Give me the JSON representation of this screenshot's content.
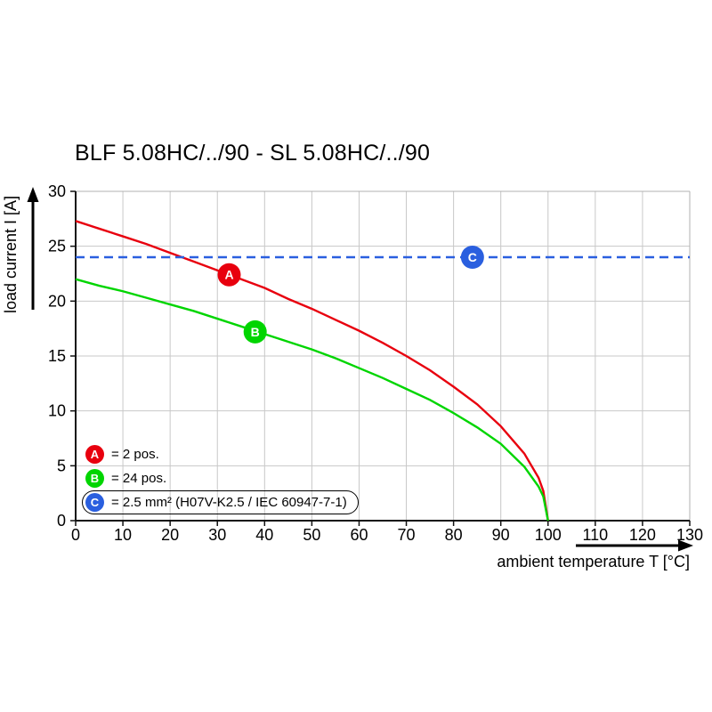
{
  "title": "BLF 5.08HC/../90 - SL 5.08HC/../90",
  "chart_data": {
    "type": "line",
    "title": "BLF 5.08HC/../90 - SL 5.08HC/../90",
    "xlabel": "ambient temperature T [°C]",
    "ylabel": "load current I [A]",
    "xlim": [
      0,
      130
    ],
    "ylim": [
      0,
      30
    ],
    "x_tick_step": 10,
    "y_tick_step": 5,
    "grid": true,
    "legend_position": "bottom-left",
    "series": [
      {
        "name": "A",
        "label": "= 2 pos.",
        "color": "#e8000e",
        "style": "solid",
        "x": [
          0,
          5,
          10,
          15,
          20,
          25,
          30,
          35,
          40,
          45,
          50,
          55,
          60,
          65,
          70,
          75,
          80,
          85,
          90,
          95,
          98,
          99,
          100
        ],
        "y": [
          27.3,
          26.6,
          25.9,
          25.2,
          24.4,
          23.6,
          22.8,
          22.0,
          21.2,
          20.2,
          19.3,
          18.3,
          17.3,
          16.2,
          15.0,
          13.7,
          12.2,
          10.6,
          8.6,
          6.1,
          3.9,
          2.7,
          0
        ]
      },
      {
        "name": "B",
        "label": "= 24 pos.",
        "color": "#00d500",
        "style": "solid",
        "x": [
          0,
          5,
          10,
          15,
          20,
          25,
          30,
          35,
          40,
          45,
          50,
          55,
          60,
          65,
          70,
          75,
          80,
          85,
          90,
          95,
          98,
          99,
          100
        ],
        "y": [
          22.0,
          21.4,
          20.9,
          20.3,
          19.7,
          19.1,
          18.4,
          17.7,
          17.0,
          16.3,
          15.6,
          14.8,
          13.9,
          13.0,
          12.0,
          11.0,
          9.8,
          8.5,
          7.0,
          4.9,
          3.1,
          2.2,
          0
        ]
      },
      {
        "name": "C",
        "label": "= 2.5 mm² (H07V-K2.5 / IEC 60947-7-1)",
        "color": "#2a5fdf",
        "style": "dashed",
        "x": [
          0,
          130
        ],
        "y": [
          24,
          24
        ]
      }
    ],
    "markers": [
      {
        "label": "A",
        "x": 32.5,
        "y": 22.4,
        "color": "#e8000e"
      },
      {
        "label": "B",
        "x": 38,
        "y": 17.2,
        "color": "#00d500"
      },
      {
        "label": "C",
        "x": 84,
        "y": 24,
        "color": "#2a5fdf"
      }
    ]
  },
  "legend": {
    "items": [
      {
        "letter": "A",
        "text": "= 2 pos.",
        "color": "#e8000e",
        "boxed": false
      },
      {
        "letter": "B",
        "text": "= 24 pos.",
        "color": "#00d500",
        "boxed": false
      },
      {
        "letter": "C",
        "text": "= 2.5 mm² (H07V-K2.5 / IEC 60947-7-1)",
        "color": "#2a5fdf",
        "boxed": true
      }
    ]
  }
}
